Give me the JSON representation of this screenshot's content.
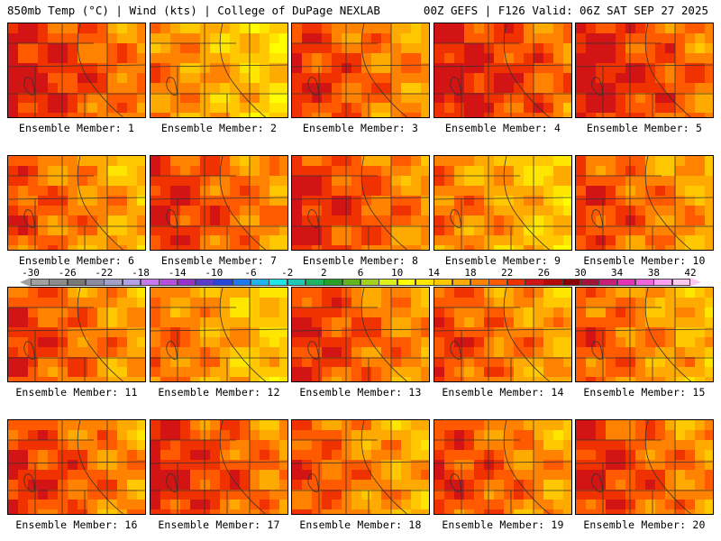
{
  "header": {
    "left": "850mb Temp (°C) | Wind (kts) | College of DuPage NEXLAB",
    "right": "00Z GEFS | F126 Valid: 06Z SAT SEP 27 2025"
  },
  "panels": [
    {
      "caption": "Ensemble Member: 1",
      "warmth": 0.78
    },
    {
      "caption": "Ensemble Member: 2",
      "warmth": 0.45
    },
    {
      "caption": "Ensemble Member: 3",
      "warmth": 0.68
    },
    {
      "caption": "Ensemble Member: 4",
      "warmth": 0.82
    },
    {
      "caption": "Ensemble Member: 5",
      "warmth": 0.8
    },
    {
      "caption": "Ensemble Member: 6",
      "warmth": 0.6
    },
    {
      "caption": "Ensemble Member: 7",
      "warmth": 0.72
    },
    {
      "caption": "Ensemble Member: 8",
      "warmth": 0.74
    },
    {
      "caption": "Ensemble Member: 9",
      "warmth": 0.48
    },
    {
      "caption": "Ensemble Member: 10",
      "warmth": 0.64
    },
    {
      "caption": "Ensemble Member: 11",
      "warmth": 0.66
    },
    {
      "caption": "Ensemble Member: 12",
      "warmth": 0.5
    },
    {
      "caption": "Ensemble Member: 13",
      "warmth": 0.7
    },
    {
      "caption": "Ensemble Member: 14",
      "warmth": 0.62
    },
    {
      "caption": "Ensemble Member: 15",
      "warmth": 0.58
    },
    {
      "caption": "Ensemble Member: 16",
      "warmth": 0.7
    },
    {
      "caption": "Ensemble Member: 17",
      "warmth": 0.76
    },
    {
      "caption": "Ensemble Member: 18",
      "warmth": 0.6
    },
    {
      "caption": "Ensemble Member: 19",
      "warmth": 0.66
    },
    {
      "caption": "Ensemble Member: 20",
      "warmth": 0.72
    }
  ],
  "colorbar": {
    "labels": [
      "-30",
      "-26",
      "-22",
      "-18",
      "-14",
      "-10",
      "-6",
      "-2",
      "2",
      "6",
      "10",
      "14",
      "18",
      "22",
      "26",
      "30",
      "34",
      "38",
      "42"
    ],
    "colors": [
      "#a0a0a0",
      "#8c8c8c",
      "#787878",
      "#8c8ca0",
      "#a0a0c8",
      "#b4a0e6",
      "#c878f0",
      "#b450dc",
      "#9632c8",
      "#5a3cc8",
      "#2846dc",
      "#1e78f0",
      "#1eb4f0",
      "#1ee6e6",
      "#1ec8b4",
      "#1eb464",
      "#28a028",
      "#64b41e",
      "#a0d21e",
      "#dcf01e",
      "#ffff00",
      "#ffe600",
      "#ffc800",
      "#ffaa00",
      "#ff8200",
      "#ff5a00",
      "#f03200",
      "#d21414",
      "#b40a0a",
      "#8c0000",
      "#a0143c",
      "#c81e78",
      "#e632b4",
      "#f064dc",
      "#ffa0f0",
      "#ffc8f0"
    ]
  }
}
